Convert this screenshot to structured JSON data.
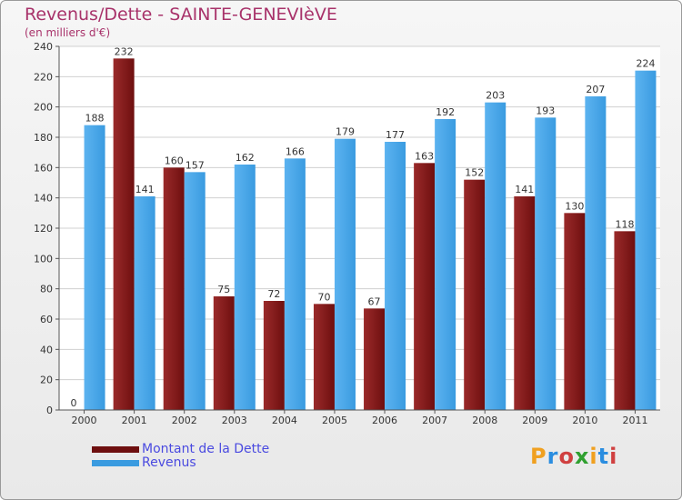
{
  "title": "Revenus/Dette - SAINTE-GENEVIèVE",
  "subtitle": "(en milliers d'€)",
  "logo_text": "Proxiti",
  "colors": {
    "debt": "#6e0f0f",
    "revenue": "#3a9be0",
    "title": "#a8326a",
    "legend_text": "#4a4ae0",
    "grid": "#d0d0d0"
  },
  "chart_data": {
    "type": "bar",
    "categories": [
      "2000",
      "2001",
      "2002",
      "2003",
      "2004",
      "2005",
      "2006",
      "2007",
      "2008",
      "2009",
      "2010",
      "2011"
    ],
    "series": [
      {
        "name": "Montant de la Dette",
        "values": [
          0,
          232,
          160,
          75,
          72,
          70,
          67,
          163,
          152,
          141,
          130,
          118
        ]
      },
      {
        "name": "Revenus",
        "values": [
          188,
          141,
          157,
          162,
          166,
          179,
          177,
          192,
          203,
          193,
          207,
          224
        ]
      }
    ],
    "yticks": [
      0,
      20,
      40,
      60,
      80,
      100,
      120,
      140,
      160,
      180,
      200,
      220,
      240
    ],
    "ylim": [
      0,
      240
    ],
    "grid": true,
    "legend_position": "bottom-left"
  }
}
